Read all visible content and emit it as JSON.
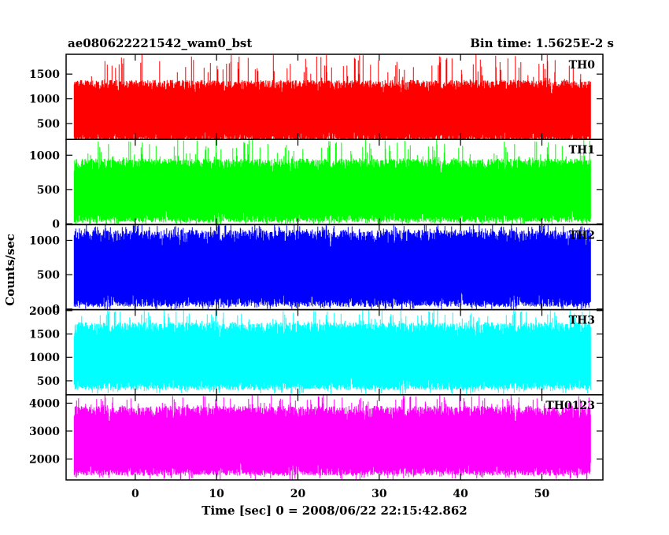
{
  "header": {
    "left_title": "ae080622221542_wam0_bst",
    "right_title": "Bin time: 1.5625E-2 s"
  },
  "chart_data": {
    "type": "line",
    "xlabel": "Time [sec] 0 = 2008/06/22 22:15:42.862",
    "ylabel": "Counts/sec",
    "xlim": [
      -8.5,
      57.5
    ],
    "x_ticks": [
      0,
      10,
      20,
      30,
      40,
      50
    ],
    "x_range_data": [
      -7.5,
      56
    ],
    "panels": [
      {
        "name": "TH0",
        "color": "#ff0000",
        "ylim": [
          180,
          1900
        ],
        "y_ticks": [
          500,
          1000,
          1500
        ],
        "band_low": 130,
        "band_high": 1380,
        "band_mean": 820
      },
      {
        "name": "TH1",
        "color": "#00ff00",
        "ylim": [
          -10,
          1230
        ],
        "y_ticks": [
          0,
          500,
          1000
        ],
        "band_low": 20,
        "band_high": 950,
        "band_mean": 400
      },
      {
        "name": "TH2",
        "color": "#0000ff",
        "ylim": [
          -10,
          1230
        ],
        "y_ticks": [
          0,
          500,
          1000
        ],
        "band_low": 30,
        "band_high": 1150,
        "band_mean": 520
      },
      {
        "name": "TH3",
        "color": "#00ffff",
        "ylim": [
          200,
          2020
        ],
        "y_ticks": [
          500,
          1000,
          1500,
          2000
        ],
        "band_low": 300,
        "band_high": 1750,
        "band_mean": 1000
      },
      {
        "name": "TH0123",
        "color": "#ff00ff",
        "ylim": [
          1250,
          4300
        ],
        "y_ticks": [
          2000,
          3000,
          4000
        ],
        "band_low": 1400,
        "band_high": 3900,
        "band_mean": 2650
      }
    ]
  }
}
